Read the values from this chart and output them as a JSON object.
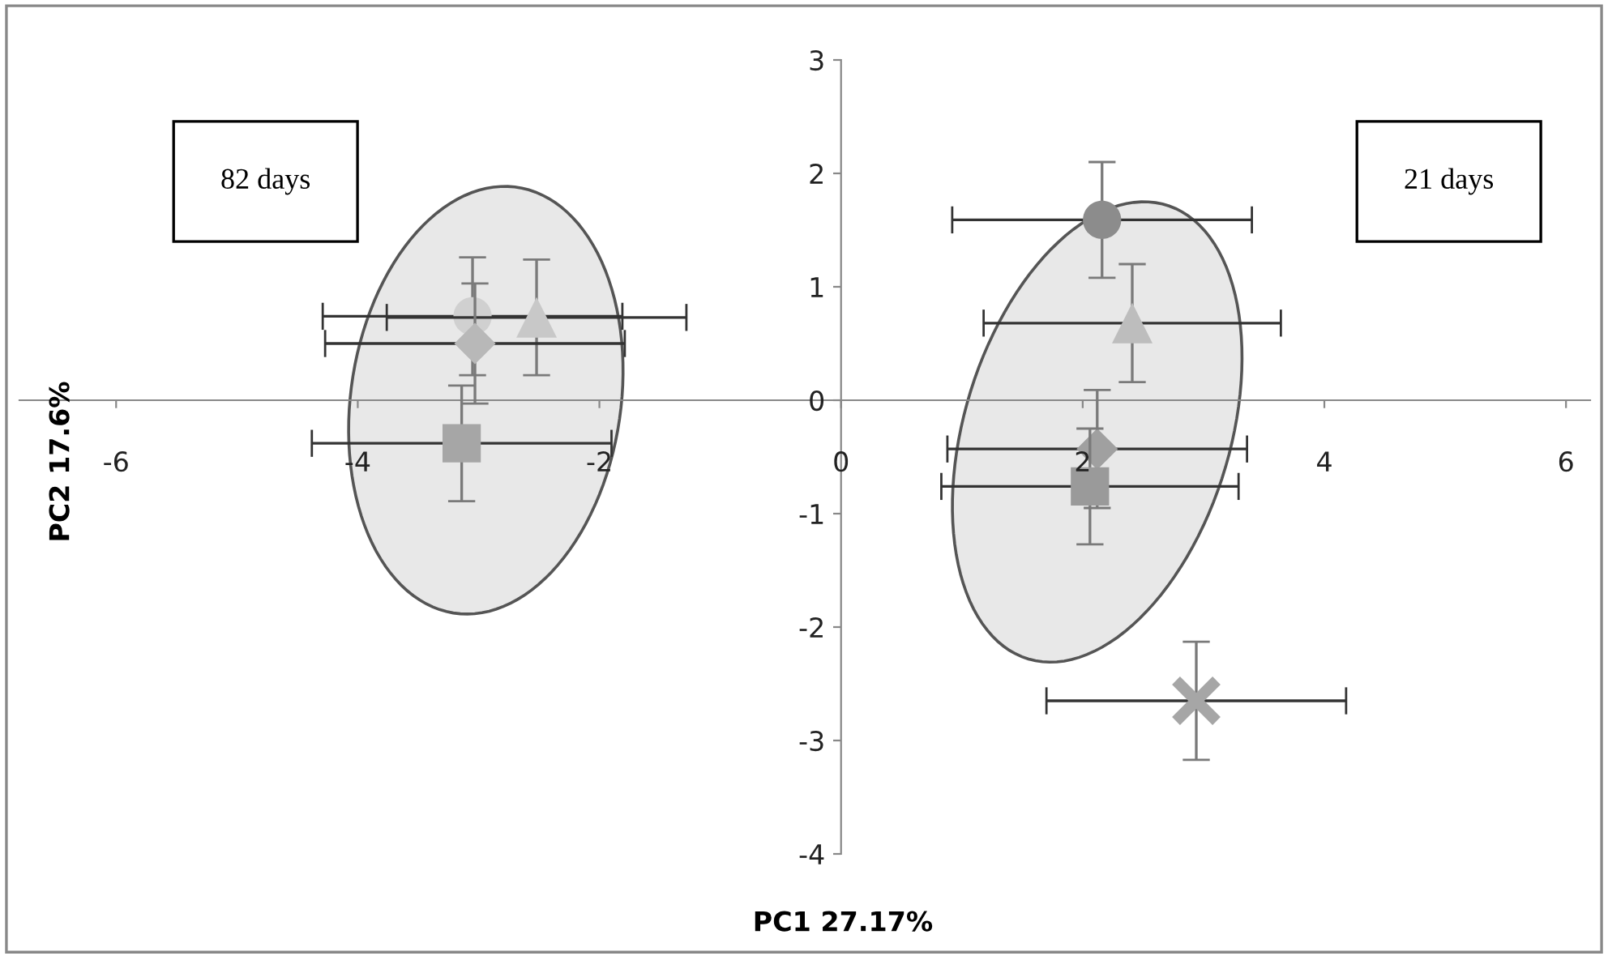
{
  "chart_data": {
    "type": "scatter",
    "xlabel": "PC1 27.17%",
    "ylabel": "PC2 17.6%",
    "annotations": [
      "82 days",
      "21 days"
    ],
    "xlim": [
      -6.8,
      6.2
    ],
    "xticks": [
      -6,
      -4,
      -2,
      0,
      2,
      4,
      6
    ],
    "ylim": [
      -4,
      3
    ],
    "yticks": [
      -4,
      -3,
      -2,
      -1,
      0,
      1,
      2,
      3
    ],
    "grid": false,
    "legend": false,
    "series": [
      {
        "x": [
          -3.05
        ],
        "values": [
          0.74
        ],
        "errors": [
          0.52
        ],
        "xerrors": [
          1.24
        ],
        "marker": "circle",
        "color": "#d0d0d0"
      },
      {
        "x": [
          -2.52
        ],
        "values": [
          0.73
        ],
        "errors": [
          0.51
        ],
        "xerrors": [
          1.24
        ],
        "marker": "triangle",
        "color": "#c8c8c8"
      },
      {
        "x": [
          -3.03
        ],
        "values": [
          0.5
        ],
        "errors": [
          0.53
        ],
        "xerrors": [
          1.24
        ],
        "marker": "diamond",
        "color": "#b8b8b8"
      },
      {
        "x": [
          -3.14
        ],
        "values": [
          -0.38
        ],
        "errors": [
          0.51
        ],
        "xerrors": [
          1.24
        ],
        "marker": "square",
        "color": "#a6a6a6"
      },
      {
        "x": [
          2.16
        ],
        "values": [
          1.59
        ],
        "errors": [
          0.51
        ],
        "xerrors": [
          1.24
        ],
        "marker": "circle",
        "color": "#8c8c8c"
      },
      {
        "x": [
          2.41
        ],
        "values": [
          0.68
        ],
        "errors": [
          0.52
        ],
        "xerrors": [
          1.23
        ],
        "marker": "triangle",
        "color": "#bdbdbd"
      },
      {
        "x": [
          2.12
        ],
        "values": [
          -0.43
        ],
        "errors": [
          0.52
        ],
        "xerrors": [
          1.24
        ],
        "marker": "diamond",
        "color": "#a0a0a0"
      },
      {
        "x": [
          2.06
        ],
        "values": [
          -0.76
        ],
        "errors": [
          0.51
        ],
        "xerrors": [
          1.23
        ],
        "marker": "square",
        "color": "#9a9a9a"
      },
      {
        "x": [
          2.94
        ],
        "values": [
          -2.65
        ],
        "errors": [
          0.52
        ],
        "xerrors": [
          1.24
        ],
        "marker": "cross",
        "color": "#a6a6a6"
      }
    ]
  }
}
